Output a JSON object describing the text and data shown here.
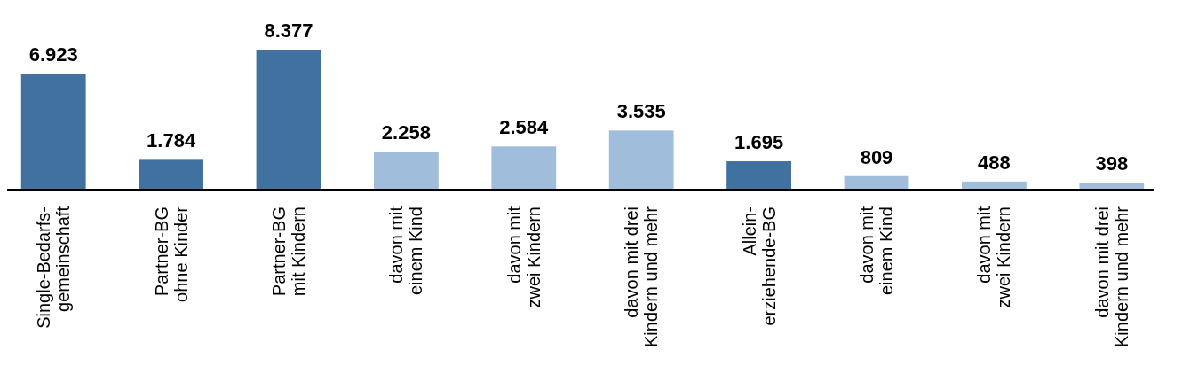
{
  "chart_data": {
    "type": "bar",
    "categories": [
      "Single-Bedarfs-\ngemeinschaft",
      "Partner-BG\nohne Kinder",
      "Partner-BG\nmit Kindern",
      "davon mit\neinem Kind",
      "davon mit\nzwei Kindern",
      "davon mit drei\nKindern und mehr",
      "Allein-\nerziehende-BG",
      "davon mit\neinem Kind",
      "davon mit\nzwei Kindern",
      "davon mit drei\nKindern und mehr"
    ],
    "values": [
      6923,
      1784,
      8377,
      2258,
      2584,
      3535,
      1695,
      809,
      488,
      398
    ],
    "value_labels": [
      "6.923",
      "1.784",
      "8.377",
      "2.258",
      "2.584",
      "3.535",
      "1.695",
      "809",
      "488",
      "398"
    ],
    "colors": [
      "#41729f",
      "#41729f",
      "#41729f",
      "#a0bedb",
      "#a0bedb",
      "#a0bedb",
      "#41729f",
      "#a0bedb",
      "#a0bedb",
      "#a0bedb"
    ]
  }
}
